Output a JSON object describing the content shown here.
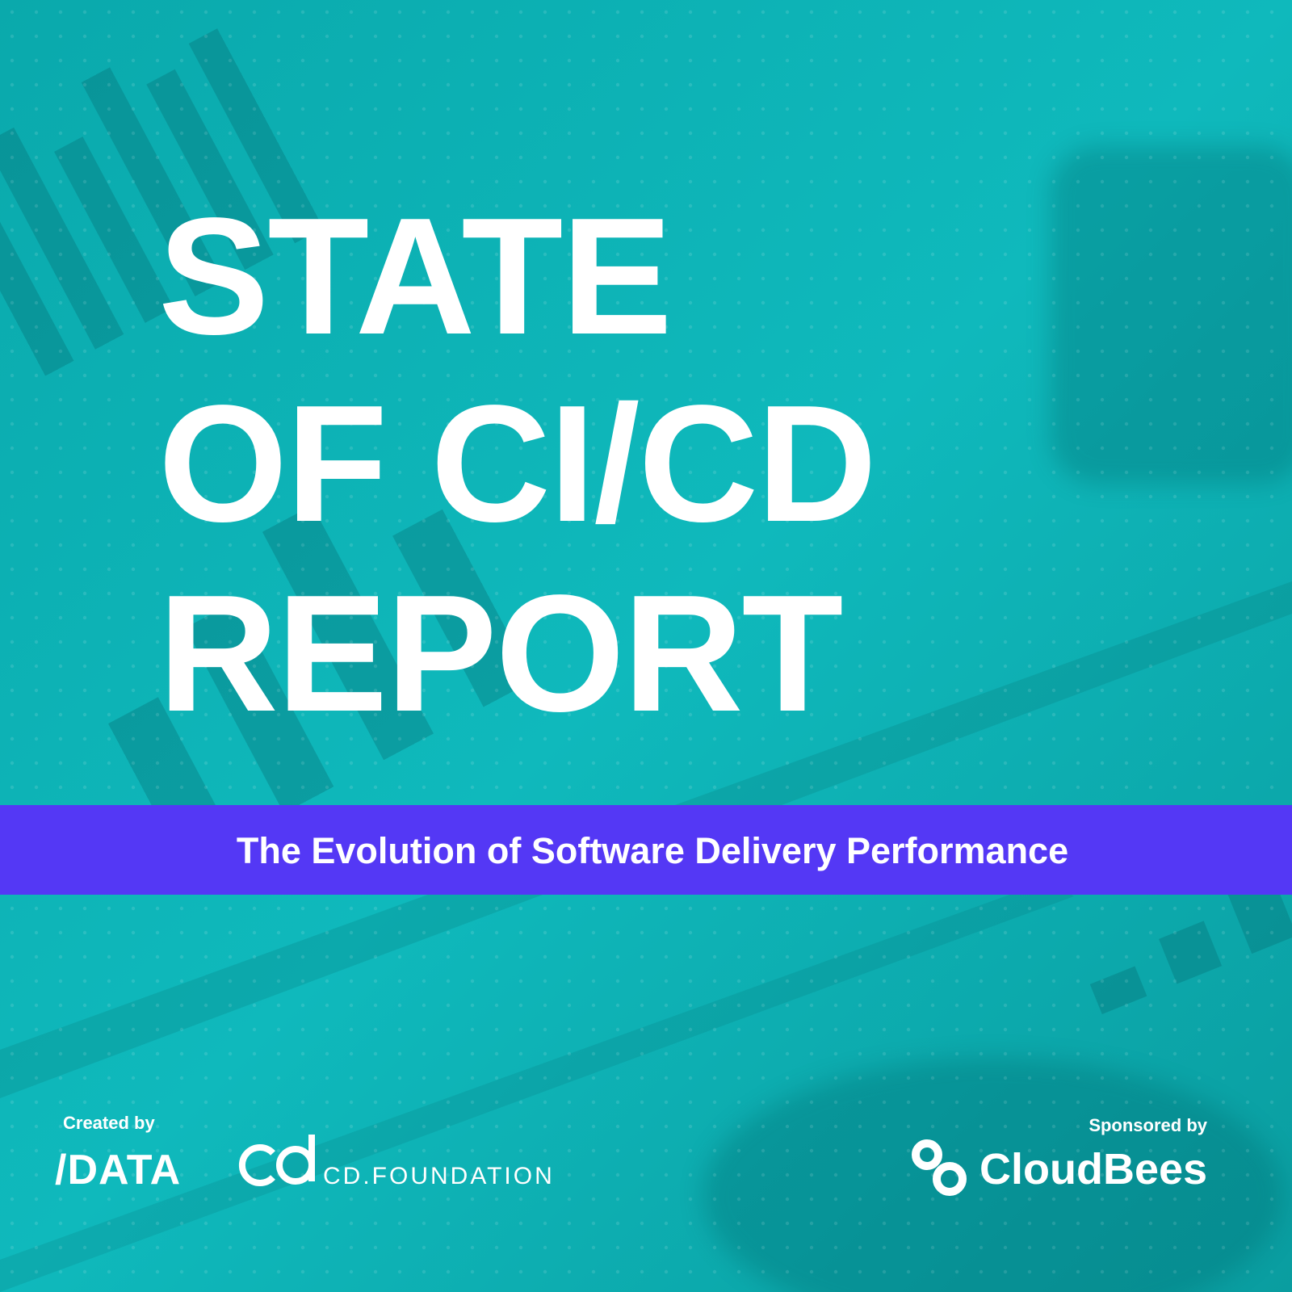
{
  "title": {
    "lines": [
      "STATE",
      "OF CI/CD",
      "REPORT"
    ]
  },
  "subtitle": "The Evolution of Software Delivery Performance",
  "credits": {
    "created_by": "Created by",
    "creators": [
      "/DATA",
      "CD.FOUNDATION"
    ],
    "sponsored_by": "Sponsored by",
    "sponsor": "CloudBees"
  }
}
